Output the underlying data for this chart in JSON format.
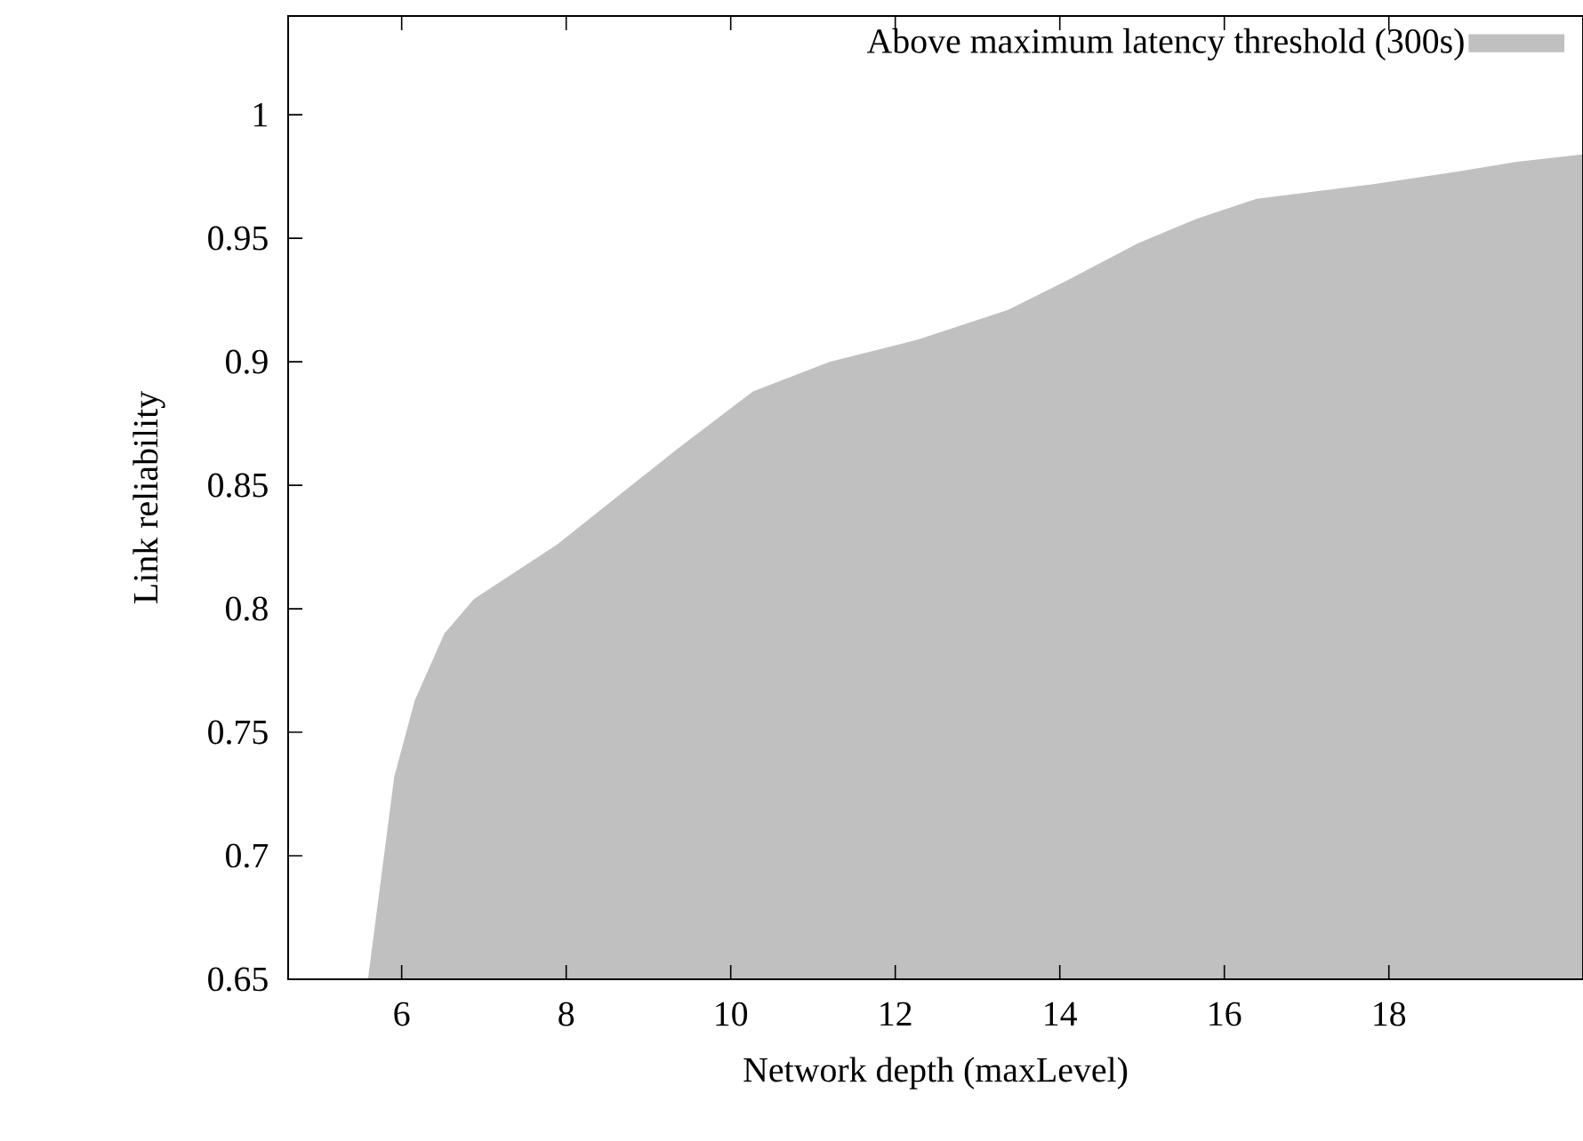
{
  "chart_data": {
    "type": "area",
    "xlabel": "Network depth (maxLevel)",
    "ylabel": "Link reliability",
    "xlim": [
      4.62,
      20.36
    ],
    "ylim": [
      0.65,
      1.04
    ],
    "xticks": [
      6,
      8,
      10,
      12,
      14,
      16,
      18
    ],
    "yticks": [
      0.65,
      0.7,
      0.75,
      0.8,
      0.85,
      0.9,
      0.95,
      1
    ],
    "legend": "top right",
    "series": [
      {
        "name": "Above maximum latency threshold (300s)",
        "color": "#c0c0c0",
        "x": [
          5.59,
          5.91,
          6.16,
          6.52,
          6.88,
          7.89,
          8.68,
          9.4,
          10.27,
          11.2,
          12.28,
          13.0,
          13.37,
          14.09,
          14.95,
          15.67,
          16.39,
          17.83,
          18.84,
          19.56,
          20.36
        ],
        "values": [
          0.65,
          0.732,
          0.763,
          0.79,
          0.804,
          0.826,
          0.847,
          0.866,
          0.888,
          0.9,
          0.909,
          0.917,
          0.921,
          0.933,
          0.948,
          0.958,
          0.966,
          0.972,
          0.977,
          0.981,
          0.984
        ]
      }
    ]
  }
}
